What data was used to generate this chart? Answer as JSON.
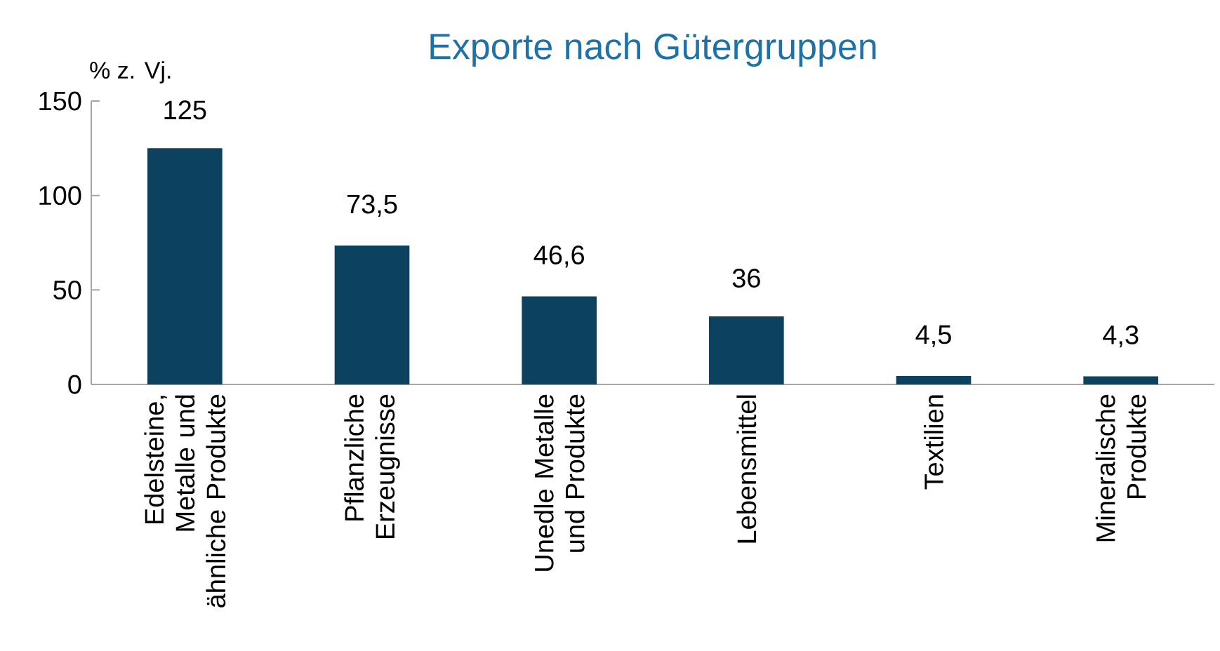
{
  "chart_data": {
    "type": "bar",
    "title": "Exporte nach Gütergruppen",
    "ylabel": "% z. Vj.",
    "categories": [
      "Edelsteine, Metalle und ähnliche Produkte",
      "Pflanzliche Erzeugnisse",
      "Unedle Metalle und Produkte",
      "Lebensmittel",
      "Textilien",
      "Mineralische Produkte"
    ],
    "values": [
      125,
      73.5,
      46.6,
      36,
      4.5,
      4.3
    ],
    "value_labels": [
      "125",
      "73,5",
      "46,6",
      "36",
      "4,5",
      "4,3"
    ],
    "color": "#0c4260",
    "ylim": [
      0,
      150
    ],
    "yticks": [
      0,
      50,
      100,
      150
    ],
    "grid": false
  }
}
